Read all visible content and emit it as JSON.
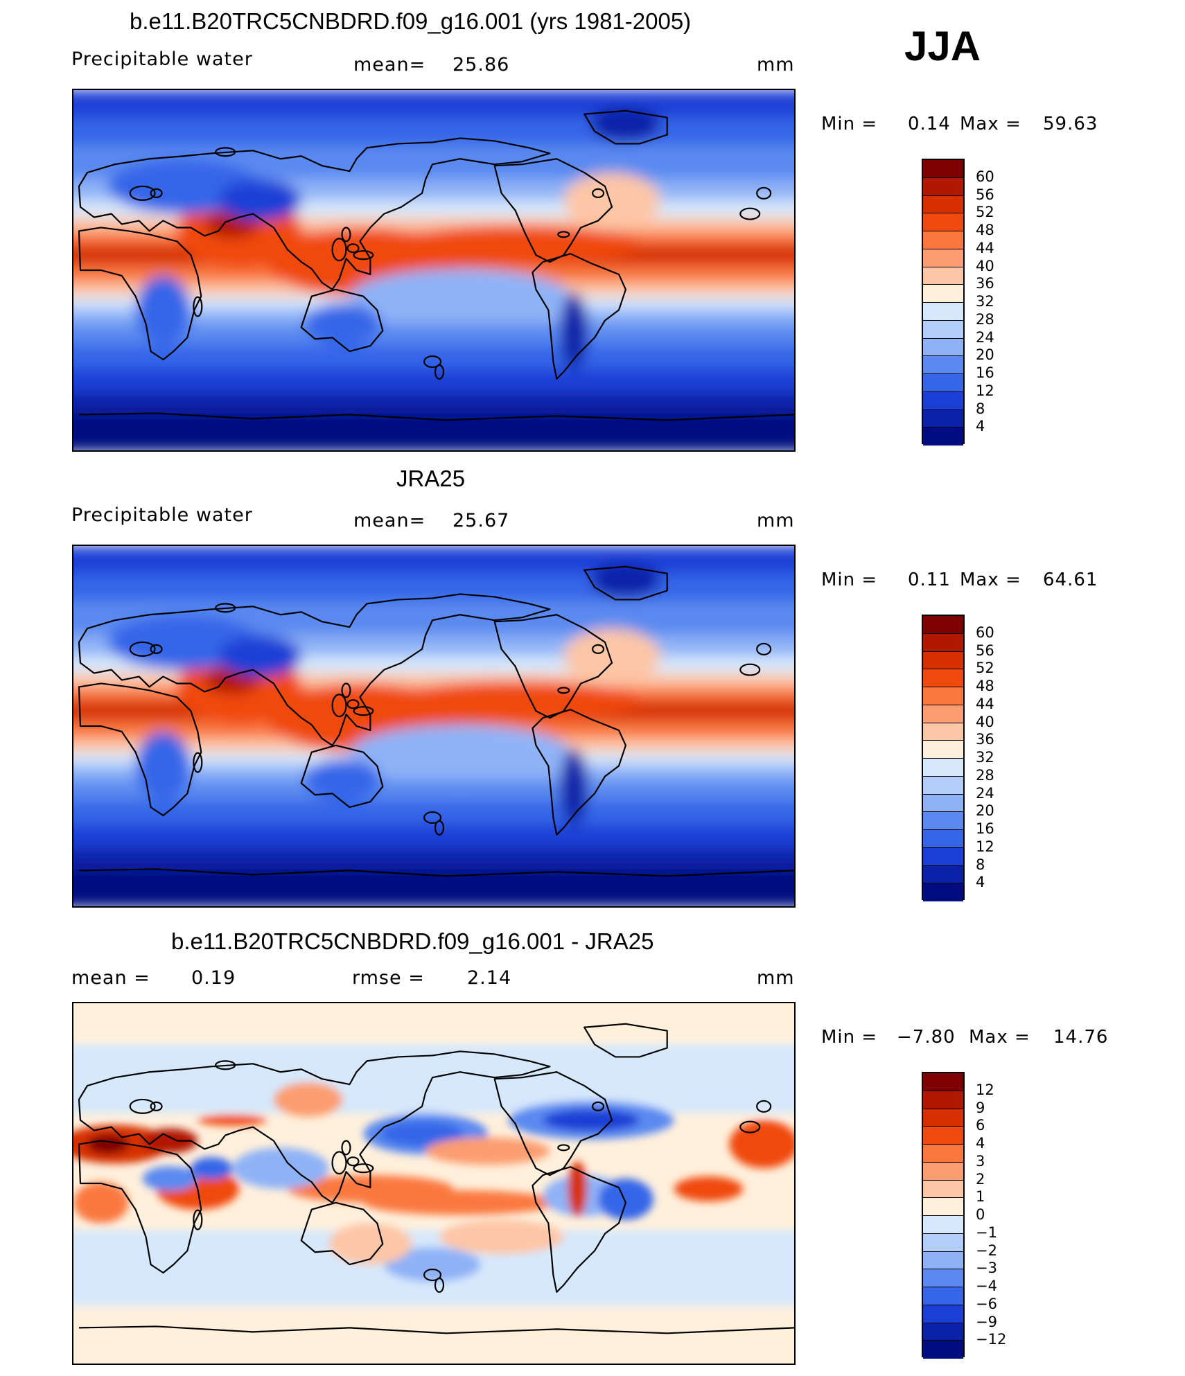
{
  "figure": {
    "season": "JJA"
  },
  "panels": [
    {
      "title": "b.e11.B20TRC5CNBDRD.f09_g16.001 (yrs 1981-2005)",
      "variable": "Precipitable water",
      "mean_label": "mean=",
      "mean_value": "25.86",
      "units": "mm",
      "min_label": "Min =",
      "min_value": "0.14",
      "max_label": "Max =",
      "max_value": "59.63",
      "colorbar_labels": [
        "60",
        "56",
        "52",
        "48",
        "44",
        "40",
        "36",
        "32",
        "28",
        "24",
        "20",
        "16",
        "12",
        "8",
        "4"
      ],
      "colors": [
        "#7f0000",
        "#b01800",
        "#d63000",
        "#f04a10",
        "#fa7840",
        "#fb9d70",
        "#fdc6a6",
        "#fff0dc",
        "#d6e8fb",
        "#b2cdfa",
        "#8fb2f7",
        "#5a8af0",
        "#3566e8",
        "#1a3fd6",
        "#0a22a8",
        "#000c80"
      ]
    },
    {
      "title": "JRA25",
      "variable": "Precipitable water",
      "mean_label": "mean=",
      "mean_value": "25.67",
      "units": "mm",
      "min_label": "Min =",
      "min_value": "0.11",
      "max_label": "Max =",
      "max_value": "64.61",
      "colorbar_labels": [
        "60",
        "56",
        "52",
        "48",
        "44",
        "40",
        "36",
        "32",
        "28",
        "24",
        "20",
        "16",
        "12",
        "8",
        "4"
      ],
      "colors": [
        "#7f0000",
        "#b01800",
        "#d63000",
        "#f04a10",
        "#fa7840",
        "#fb9d70",
        "#fdc6a6",
        "#fff0dc",
        "#d6e8fb",
        "#b2cdfa",
        "#8fb2f7",
        "#5a8af0",
        "#3566e8",
        "#1a3fd6",
        "#0a22a8",
        "#000c80"
      ]
    },
    {
      "title": "b.e11.B20TRC5CNBDRD.f09_g16.001 - JRA25",
      "mean_label": "mean =",
      "mean_value": "0.19",
      "rmse_label": "rmse =",
      "rmse_value": "2.14",
      "units": "mm",
      "min_label": "Min =",
      "min_value": "−7.80",
      "max_label": "Max =",
      "max_value": "14.76",
      "colorbar_labels": [
        "12",
        "9",
        "6",
        "4",
        "3",
        "2",
        "1",
        "0",
        "−1",
        "−2",
        "−3",
        "−4",
        "−6",
        "−9",
        "−12"
      ],
      "colors": [
        "#7f0000",
        "#b01800",
        "#d63000",
        "#f04a10",
        "#fa7840",
        "#fb9d70",
        "#fdc6a6",
        "#fff0dc",
        "#d6e8fb",
        "#b2cdfa",
        "#8fb2f7",
        "#5a8af0",
        "#3566e8",
        "#1a3fd6",
        "#0a22a8",
        "#000c80"
      ]
    }
  ]
}
